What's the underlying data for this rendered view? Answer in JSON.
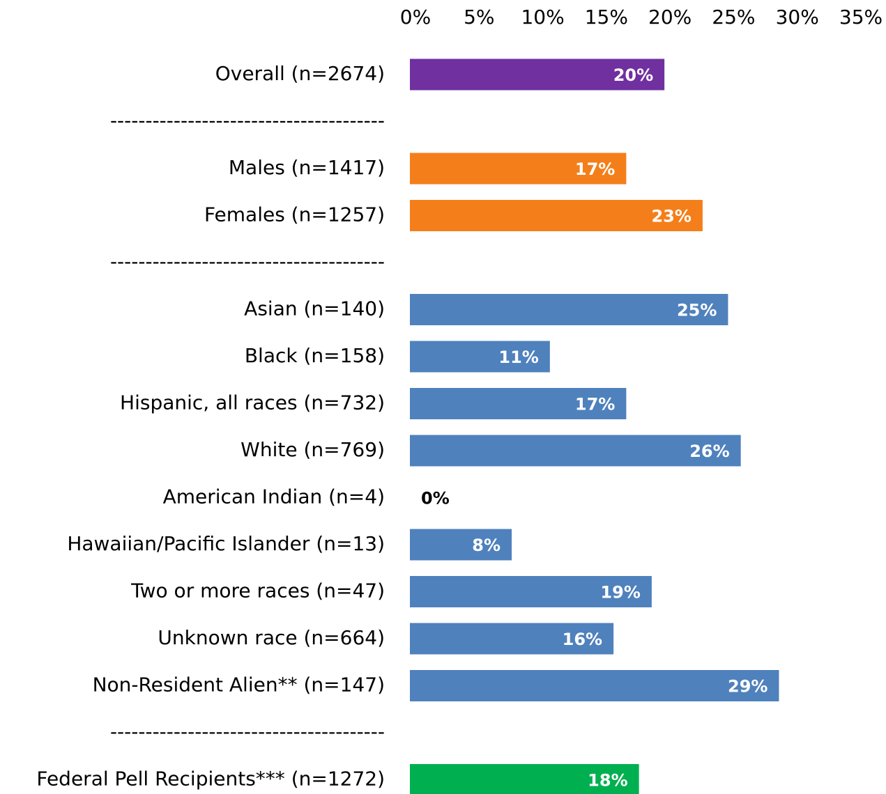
{
  "chart_data": {
    "type": "bar",
    "orientation": "horizontal",
    "categories": [
      "Overall (n=2674)",
      "---------------------------------------",
      "Males (n=1417)",
      "Females (n=1257)",
      "---------------------------------------",
      "Asian (n=140)",
      "Black (n=158)",
      "Hispanic, all races (n=732)",
      "White (n=769)",
      "American Indian (n=4)",
      "Hawaiian/Pacific Islander (n=13)",
      "Two or more races (n=47)",
      "Unknown race (n=664)",
      "Non-Resident Alien** (n=147)",
      "---------------------------------------",
      "Federal Pell Recipients*** (n=1272)"
    ],
    "values": [
      20,
      null,
      17,
      23,
      null,
      25,
      11,
      17,
      26,
      0,
      8,
      19,
      16,
      29,
      null,
      18
    ],
    "value_labels": [
      "20%",
      null,
      "17%",
      "23%",
      null,
      "25%",
      "11%",
      "17%",
      "26%",
      "0%",
      "8%",
      "19%",
      "16%",
      "29%",
      null,
      "18%"
    ],
    "colors": [
      "#7030a0",
      null,
      "#f47f1a",
      "#f47f1a",
      null,
      "#4f81bd",
      "#4f81bd",
      "#4f81bd",
      "#4f81bd",
      "#4f81bd",
      "#4f81bd",
      "#4f81bd",
      "#4f81bd",
      "#4f81bd",
      null,
      "#00b050"
    ],
    "xlim": [
      0,
      35
    ],
    "xticks": [
      {
        "value": 0,
        "label": "0%"
      },
      {
        "value": 5,
        "label": "5%"
      },
      {
        "value": 10,
        "label": "10%"
      },
      {
        "value": 15,
        "label": "15%"
      },
      {
        "value": 20,
        "label": "20%"
      },
      {
        "value": 25,
        "label": "25%"
      },
      {
        "value": 30,
        "label": "30%"
      },
      {
        "value": 35,
        "label": "35%"
      }
    ],
    "grid": false
  }
}
